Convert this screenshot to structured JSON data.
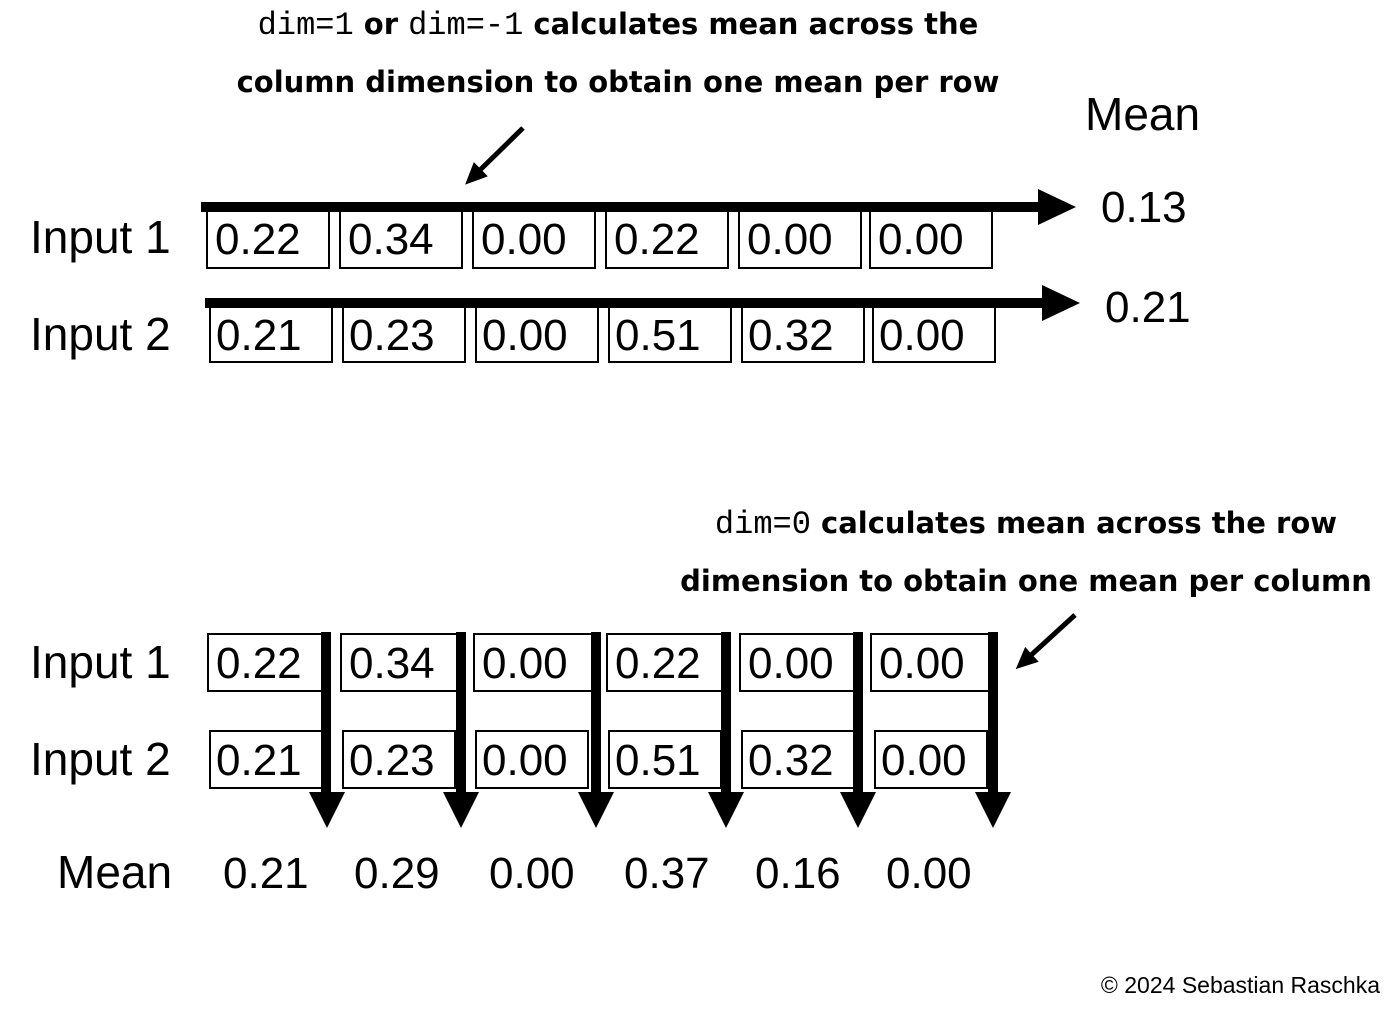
{
  "top": {
    "annotation": {
      "line1_code_a": "dim=1",
      "line1_text_a": " or ",
      "line1_code_b": "dim=-1",
      "line1_text_b": " calculates mean across the",
      "line2": "column dimension to obtain one mean per row"
    },
    "mean_header": "Mean",
    "rows": [
      {
        "label": "Input 1",
        "values": [
          "0.22",
          "0.34",
          "0.00",
          "0.22",
          "0.00",
          "0.00"
        ],
        "mean": "0.13"
      },
      {
        "label": "Input 2",
        "values": [
          "0.21",
          "0.23",
          "0.00",
          "0.51",
          "0.32",
          "0.00"
        ],
        "mean": "0.21"
      }
    ]
  },
  "bottom": {
    "annotation": {
      "line1_code": "dim=0",
      "line1_text": " calculates mean across the row",
      "line2": "dimension to obtain one mean per column"
    },
    "rows": [
      {
        "label": "Input 1",
        "values": [
          "0.22",
          "0.34",
          "0.00",
          "0.22",
          "0.00",
          "0.00"
        ]
      },
      {
        "label": "Input 2",
        "values": [
          "0.21",
          "0.23",
          "0.00",
          "0.51",
          "0.32",
          "0.00"
        ]
      }
    ],
    "mean_label": "Mean",
    "column_means": [
      "0.21",
      "0.29",
      "0.00",
      "0.37",
      "0.16",
      "0.00"
    ]
  },
  "copyright": "© 2024 Sebastian Raschka"
}
